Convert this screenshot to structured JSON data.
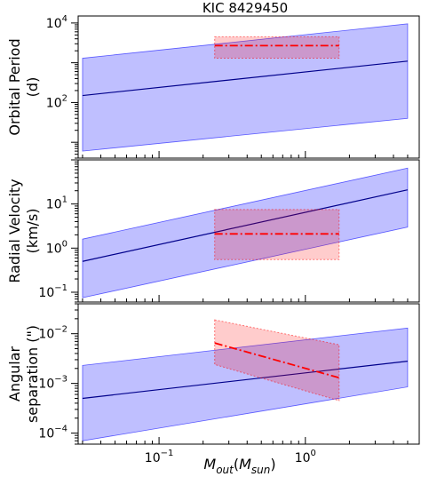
{
  "figure": {
    "title": "KIC 8429450",
    "xlabel": "M_out(M_sun)",
    "xlabel_main": "M",
    "xlabel_sub": "out",
    "xlabel_paren_open": "(",
    "xlabel_inner": "M",
    "xlabel_inner_sub": "sun",
    "xlabel_paren_close": ")"
  },
  "chart_data": [
    {
      "type": "area",
      "panel": "orbital-period",
      "ylabel_line1": "Orbital Period",
      "ylabel_line2": "(d)",
      "xscale": "log",
      "yscale": "log",
      "xlim": [
        0.028,
        6.0
      ],
      "ylim": [
        4.0,
        15000
      ],
      "yticks": [
        {
          "value": 100,
          "base": "10",
          "exp": "2"
        },
        {
          "value": 10000,
          "base": "10",
          "exp": "4"
        }
      ],
      "series": [
        {
          "role": "band",
          "color": "#0000ff",
          "x": [
            0.03,
            5.0
          ],
          "lower": [
            6.0,
            40
          ],
          "upper": [
            1300,
            9500
          ]
        },
        {
          "role": "central",
          "color": "#00008b",
          "x": [
            0.03,
            5.0
          ],
          "y": [
            150,
            1100
          ]
        },
        {
          "role": "constraint-box",
          "color": "#ff0000",
          "x": [
            0.24,
            1.7
          ],
          "lower": [
            1300,
            1300
          ],
          "upper": [
            4500,
            4500
          ],
          "center": [
            2700,
            2700
          ]
        }
      ]
    },
    {
      "type": "area",
      "panel": "radial-velocity",
      "ylabel_line1": "Radial Velocity",
      "ylabel_line2": "(km/s)",
      "xscale": "log",
      "yscale": "log",
      "xlim": [
        0.028,
        6.0
      ],
      "ylim": [
        0.06,
        100
      ],
      "yticks": [
        {
          "value": 0.1,
          "base": "10",
          "exp": "−1"
        },
        {
          "value": 1,
          "base": "10",
          "exp": "0"
        },
        {
          "value": 10,
          "base": "10",
          "exp": "1"
        }
      ],
      "series": [
        {
          "role": "band",
          "color": "#0000ff",
          "x": [
            0.03,
            5.0
          ],
          "lower": [
            0.075,
            3.0
          ],
          "upper": [
            1.6,
            65
          ]
        },
        {
          "role": "central",
          "color": "#00008b",
          "x": [
            0.03,
            5.0
          ],
          "y": [
            0.5,
            21
          ]
        },
        {
          "role": "constraint-box",
          "color": "#ff0000",
          "x": [
            0.24,
            1.7
          ],
          "lower": [
            0.55,
            0.55
          ],
          "upper": [
            7.5,
            7.5
          ],
          "center": [
            2.1,
            2.1
          ]
        }
      ]
    },
    {
      "type": "area",
      "panel": "angular-separation",
      "ylabel_line1": "Angular",
      "ylabel_line2": "separation (\")",
      "xscale": "log",
      "yscale": "log",
      "xlim": [
        0.028,
        6.0
      ],
      "ylim": [
        6e-05,
        0.04
      ],
      "xticks": [
        {
          "value": 0.1,
          "base": "10",
          "exp": "−1"
        },
        {
          "value": 1,
          "base": "10",
          "exp": "0"
        }
      ],
      "yticks": [
        {
          "value": 0.0001,
          "base": "10",
          "exp": "−4"
        },
        {
          "value": 0.001,
          "base": "10",
          "exp": "−3"
        },
        {
          "value": 0.01,
          "base": "10",
          "exp": "−2"
        }
      ],
      "series": [
        {
          "role": "band",
          "color": "#0000ff",
          "x": [
            0.03,
            5.0
          ],
          "lower": [
            7e-05,
            0.00085
          ],
          "upper": [
            0.0023,
            0.013
          ]
        },
        {
          "role": "central",
          "color": "#00008b",
          "x": [
            0.03,
            5.0
          ],
          "y": [
            0.0005,
            0.0028
          ]
        },
        {
          "role": "constraint-band",
          "color": "#ff0000",
          "x": [
            0.24,
            1.7
          ],
          "lower": [
            0.0024,
            0.00045
          ],
          "upper": [
            0.019,
            0.006
          ],
          "center": [
            0.0065,
            0.0013
          ]
        }
      ]
    }
  ]
}
